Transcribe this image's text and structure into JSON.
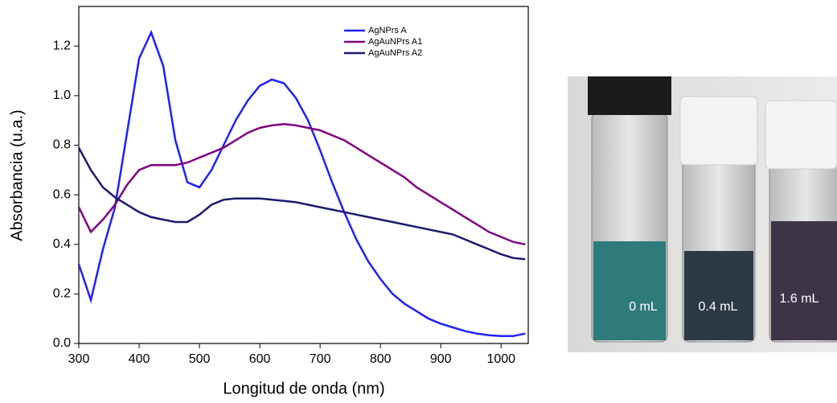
{
  "chart_data": {
    "type": "line",
    "x_label": "Longitud de onda (nm)",
    "y_label": "Absorbancia (u.a.)",
    "x": [
      300,
      320,
      340,
      360,
      380,
      400,
      420,
      440,
      460,
      480,
      500,
      520,
      540,
      560,
      580,
      600,
      620,
      640,
      660,
      680,
      700,
      720,
      740,
      760,
      780,
      800,
      820,
      840,
      860,
      880,
      900,
      920,
      940,
      960,
      980,
      1000,
      1020,
      1040
    ],
    "series": [
      {
        "name": "AgNPrs A",
        "color": "#1f1fff",
        "values": [
          0.32,
          0.175,
          0.38,
          0.55,
          0.85,
          1.15,
          1.255,
          1.12,
          0.82,
          0.65,
          0.63,
          0.7,
          0.8,
          0.9,
          0.98,
          1.04,
          1.065,
          1.05,
          0.99,
          0.9,
          0.78,
          0.65,
          0.53,
          0.42,
          0.33,
          0.26,
          0.2,
          0.16,
          0.13,
          0.1,
          0.08,
          0.065,
          0.05,
          0.04,
          0.033,
          0.03,
          0.03,
          0.04
        ]
      },
      {
        "name": "AgAuNPrs A1",
        "color": "#800080",
        "values": [
          0.55,
          0.45,
          0.5,
          0.56,
          0.64,
          0.7,
          0.72,
          0.72,
          0.72,
          0.73,
          0.75,
          0.77,
          0.79,
          0.82,
          0.85,
          0.87,
          0.88,
          0.885,
          0.88,
          0.87,
          0.86,
          0.84,
          0.82,
          0.79,
          0.76,
          0.73,
          0.7,
          0.67,
          0.63,
          0.6,
          0.57,
          0.54,
          0.51,
          0.48,
          0.45,
          0.43,
          0.41,
          0.4
        ]
      },
      {
        "name": "AgAuNPrs A2",
        "color": "#1a1a6e",
        "values": [
          0.79,
          0.7,
          0.63,
          0.59,
          0.56,
          0.53,
          0.51,
          0.5,
          0.49,
          0.49,
          0.52,
          0.56,
          0.58,
          0.585,
          0.585,
          0.585,
          0.58,
          0.575,
          0.57,
          0.56,
          0.55,
          0.54,
          0.53,
          0.52,
          0.51,
          0.5,
          0.49,
          0.48,
          0.47,
          0.46,
          0.45,
          0.44,
          0.42,
          0.4,
          0.38,
          0.36,
          0.345,
          0.34
        ]
      }
    ],
    "xlim": [
      300,
      1045
    ],
    "ylim": [
      0,
      1.36
    ],
    "xticks": [
      300,
      400,
      500,
      600,
      700,
      800,
      900,
      1000
    ],
    "yticks": [
      {
        "value": 0,
        "label": "0.0"
      },
      0.2,
      0.4,
      0.6,
      0.8,
      {
        "value": 1,
        "label": "1.0"
      },
      1.2
    ],
    "legend": "upper right"
  },
  "photo": {
    "labels": [
      "0 mL",
      "0.4 mL",
      "1.6 mL"
    ]
  }
}
